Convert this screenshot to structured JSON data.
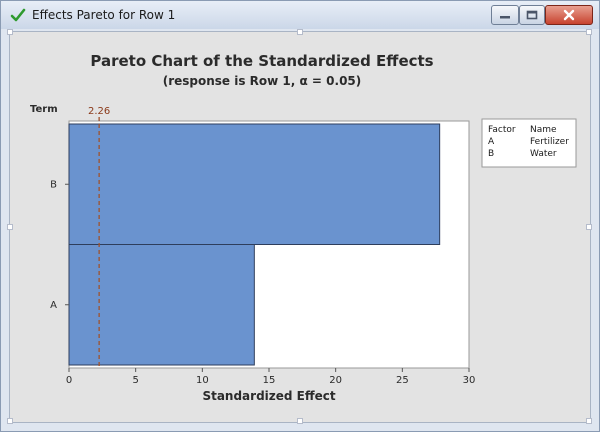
{
  "window": {
    "title": "Effects Pareto for Row 1",
    "icon": "check-icon",
    "controls": [
      "minimize-icon",
      "maximize-icon",
      "close-icon"
    ]
  },
  "chart_data": {
    "type": "bar",
    "orientation": "horizontal",
    "title": "Pareto Chart of the Standardized Effects",
    "subtitle": "(response is Row 1, α = 0.05)",
    "xlabel": "Standardized Effect",
    "ylabel": "Term",
    "categories": [
      "B",
      "A"
    ],
    "values": [
      27.8,
      13.9
    ],
    "xlim": [
      0,
      30
    ],
    "xticks": [
      "0",
      "5",
      "10",
      "15",
      "20",
      "25",
      "30"
    ],
    "bar_color": "#6a93cf",
    "reference_line": {
      "value": 2.26,
      "label": "2.26",
      "color": "#a0522d"
    },
    "legend": {
      "header": [
        "Factor",
        "Name"
      ],
      "rows": [
        {
          "factor": "A",
          "name": "Fertilizer"
        },
        {
          "factor": "B",
          "name": "Water"
        }
      ],
      "placement": "right"
    }
  }
}
